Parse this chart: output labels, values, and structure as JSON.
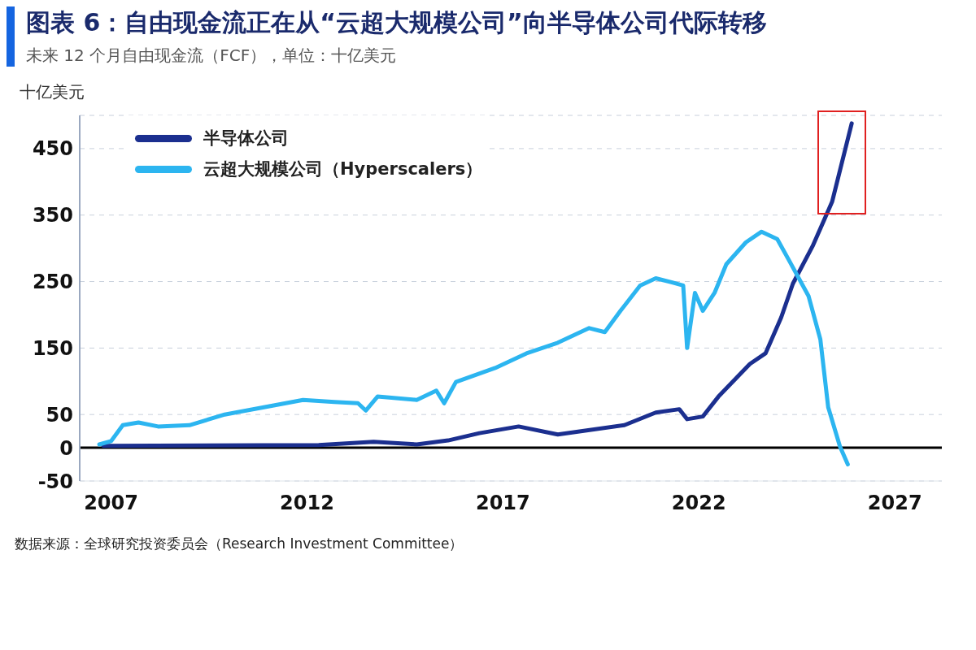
{
  "chart_data": {
    "type": "line",
    "title": "图表 6：自由现金流正在从“云超大规模公司”向半导体公司代际转移",
    "subtitle": "未来 12 个月自由现金流（FCF），单位：十亿美元",
    "ylabel": "十亿美元",
    "series": [
      {
        "name": "半导体公司",
        "color": "#1b2f8f",
        "x": [
          2006.8,
          2012.3,
          2013.7,
          2014.8,
          2015.6,
          2016.4,
          2017.4,
          2018.4,
          2020.1,
          2020.9,
          2021.5,
          2021.7,
          2022.1,
          2022.5,
          2023.3,
          2023.7,
          2024.1,
          2024.4,
          2024.9,
          2025.4,
          2025.9
        ],
        "values": [
          3,
          4,
          9,
          5,
          11,
          22,
          32,
          20,
          34,
          53,
          58,
          43,
          47,
          77,
          126,
          142,
          196,
          247,
          303,
          370,
          488
        ]
      },
      {
        "name": "云超大规模公司（Hyperscalers）",
        "color": "#2cb5f0",
        "x": [
          2006.7,
          2007.0,
          2007.3,
          2007.7,
          2008.2,
          2009.0,
          2009.9,
          2010.9,
          2011.9,
          2012.7,
          2013.3,
          2013.5,
          2013.8,
          2014.8,
          2015.3,
          2015.5,
          2015.8,
          2016.8,
          2017.6,
          2018.4,
          2019.2,
          2019.6,
          2020.0,
          2020.5,
          2020.9,
          2021.3,
          2021.6,
          2021.7,
          2021.9,
          2022.1,
          2022.4,
          2022.7,
          2023.2,
          2023.6,
          2024.0,
          2024.3,
          2024.8,
          2025.1,
          2025.3,
          2025.6,
          2025.8
        ],
        "values": [
          5,
          10,
          34,
          38,
          32,
          34,
          50,
          61,
          72,
          69,
          67,
          56,
          77,
          72,
          86,
          67,
          99,
          120,
          142,
          158,
          180,
          174,
          206,
          244,
          255,
          249,
          244,
          150,
          233,
          206,
          233,
          276,
          309,
          325,
          314,
          282,
          228,
          163,
          61,
          2,
          -25
        ]
      }
    ],
    "xlim": [
      2006.2,
      2028.2
    ],
    "xticks": [
      2007,
      2012,
      2017,
      2022,
      2027
    ],
    "ylim": [
      -50,
      500
    ],
    "yticks": [
      -50,
      0,
      50,
      150,
      250,
      350,
      450
    ],
    "ref_lines": [
      {
        "axis": "y",
        "value": 0,
        "color": "#000000"
      }
    ],
    "grid": "y",
    "legend": "top left",
    "marker": "none",
    "line_style": "solid",
    "annotations": [
      "数据来源：全球研究投资委员会（Research Investment Committee）"
    ]
  }
}
